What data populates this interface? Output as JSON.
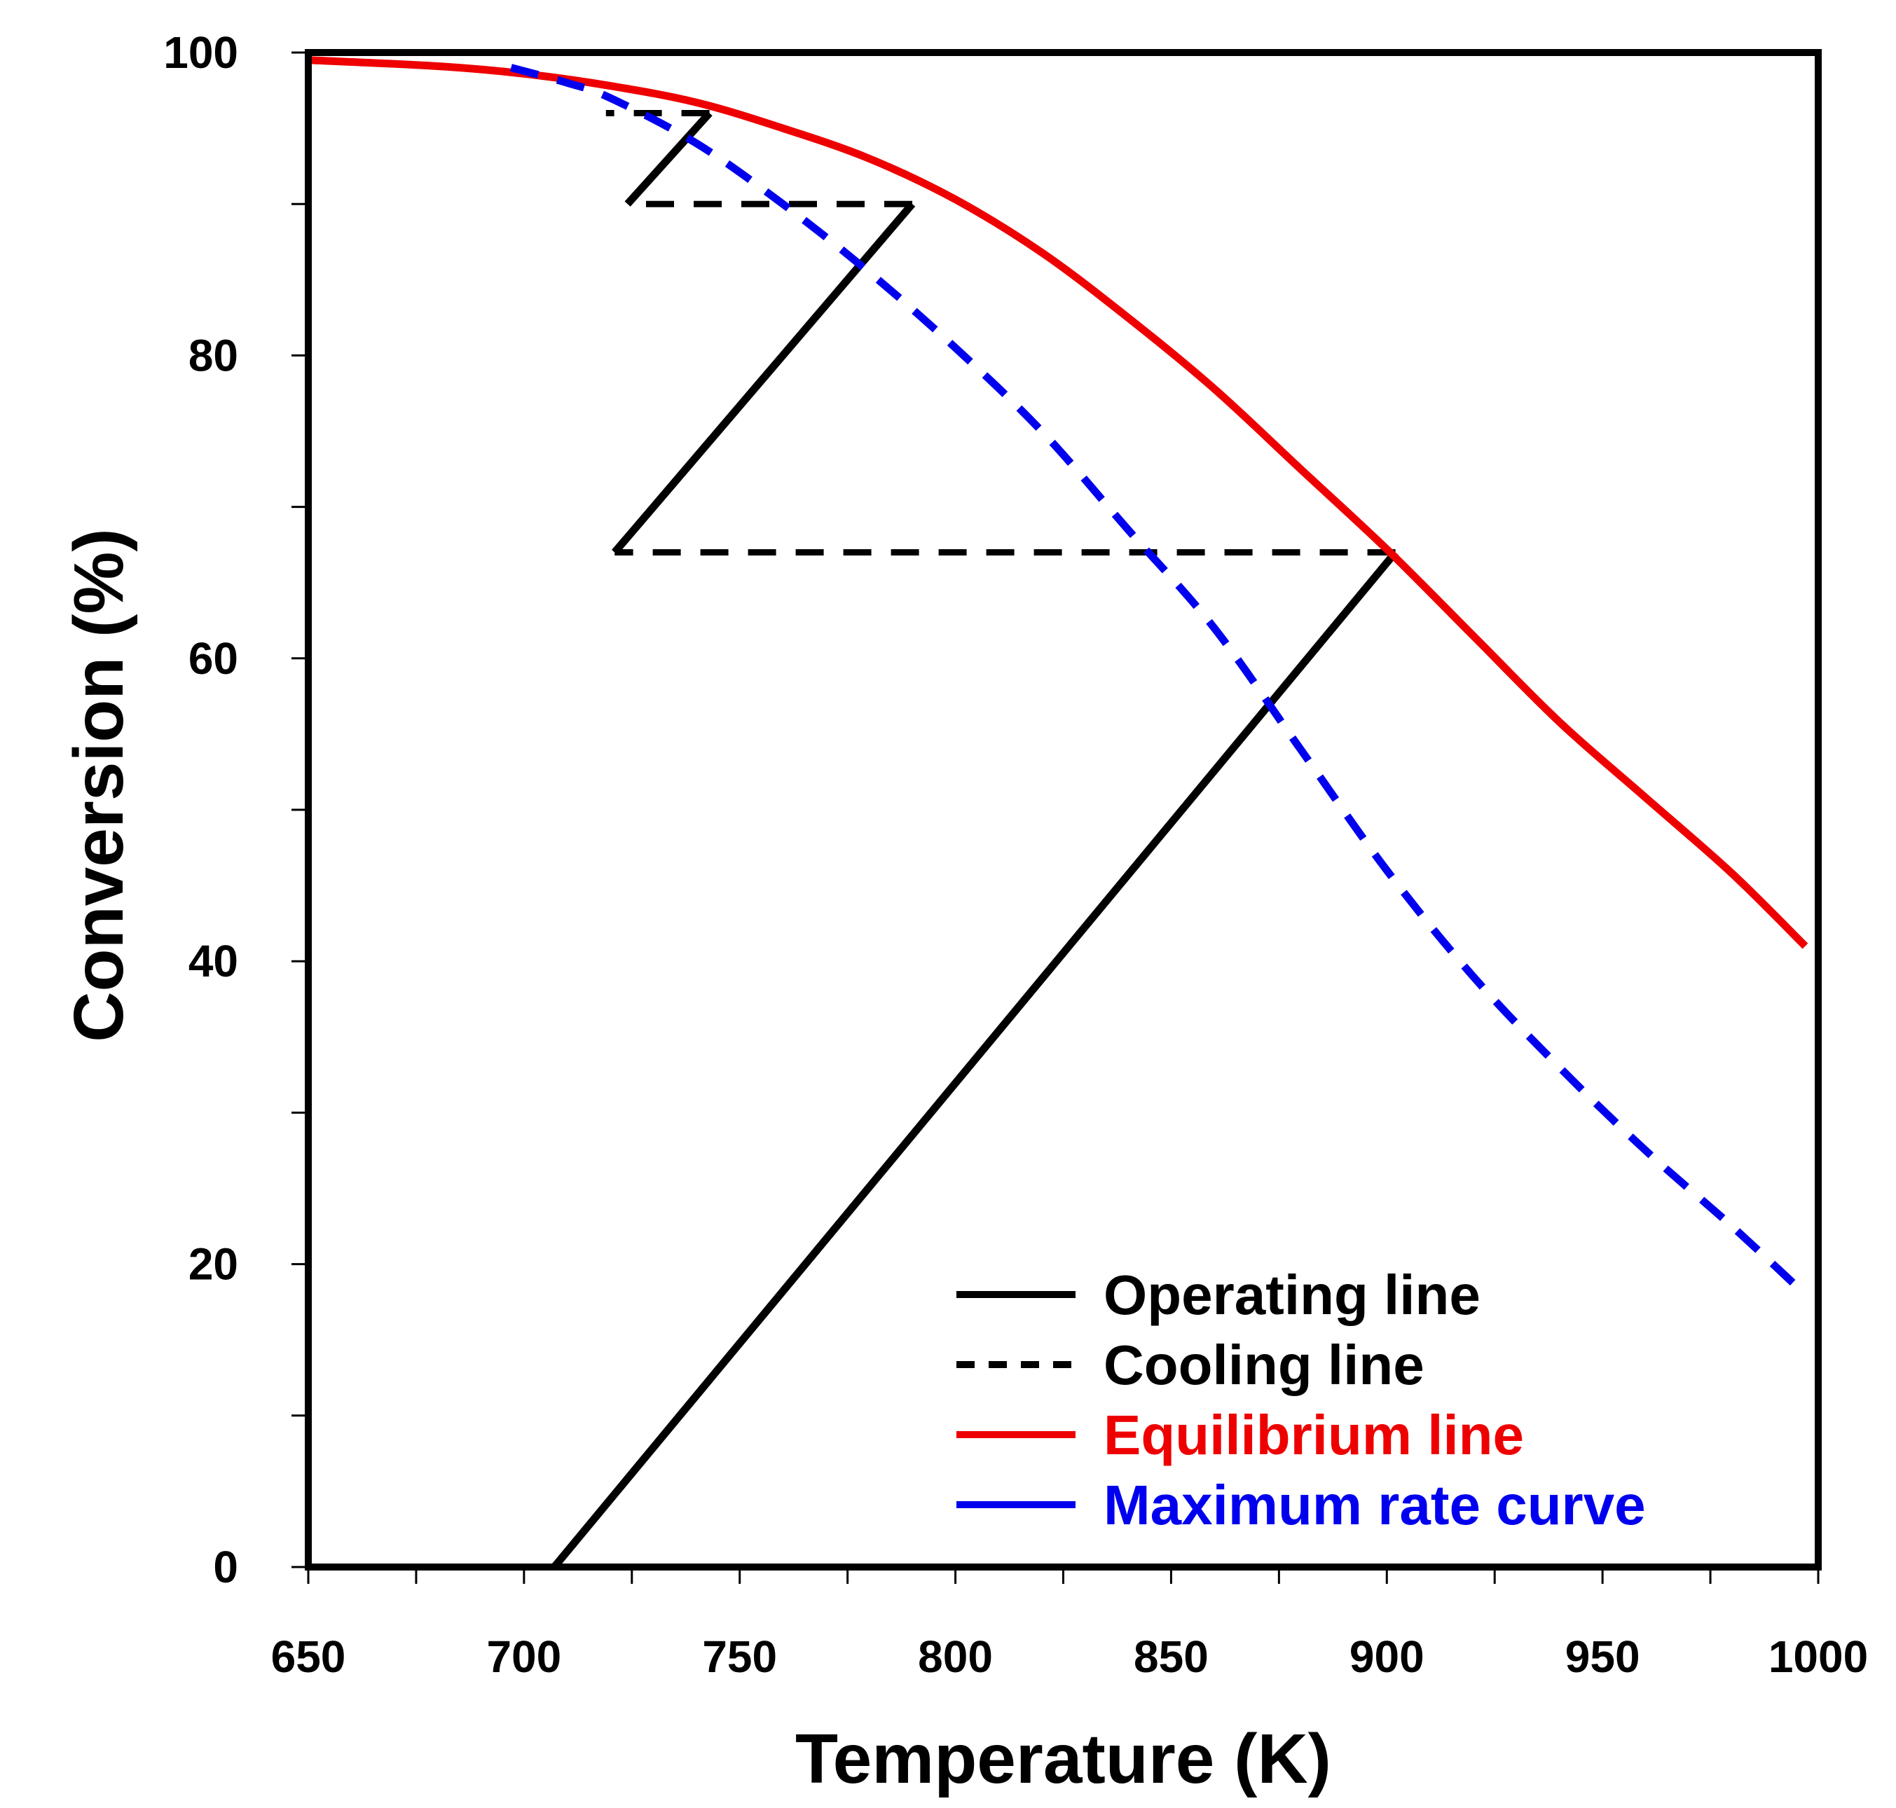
{
  "chart_data": {
    "type": "line",
    "title": "",
    "xlabel": "Temperature (K)",
    "ylabel": "Conversion (%)",
    "xlim": [
      650,
      1000
    ],
    "ylim": [
      0,
      100
    ],
    "xticks": [
      650,
      700,
      750,
      800,
      850,
      900,
      950,
      1000
    ],
    "xtick_labels": [
      "650",
      "700",
      "750",
      "800",
      "850",
      "900",
      "950",
      "1000"
    ],
    "yticks": [
      0,
      20,
      40,
      60,
      80,
      100
    ],
    "ytick_labels": [
      "0",
      "20",
      "40",
      "60",
      "80",
      "100"
    ],
    "x_minor_step": 25,
    "y_minor_step": 10,
    "grid": false,
    "legend_position": "bottom-right",
    "series": [
      {
        "name": "Operating line",
        "color": "#000000",
        "style": "solid",
        "segments": [
          [
            [
              707,
              0
            ],
            [
              902,
              67
            ]
          ],
          [
            [
              721,
              67
            ],
            [
              790,
              90
            ]
          ],
          [
            [
              724,
              90
            ],
            [
              743,
              96
            ]
          ]
        ]
      },
      {
        "name": "Cooling line",
        "color": "#000000",
        "style": "dashed",
        "segments": [
          [
            [
              902,
              67
            ],
            [
              721,
              67
            ]
          ],
          [
            [
              790,
              90
            ],
            [
              724,
              90
            ]
          ],
          [
            [
              743,
              96
            ],
            [
              719,
              96
            ]
          ]
        ]
      },
      {
        "name": "Equilibrium line",
        "color": "#ee0000",
        "style": "solid",
        "points": [
          [
            650,
            99.5
          ],
          [
            680,
            99.1
          ],
          [
            700,
            98.6
          ],
          [
            720,
            97.8
          ],
          [
            740,
            96.7
          ],
          [
            760,
            95.0
          ],
          [
            780,
            93.0
          ],
          [
            800,
            90.3
          ],
          [
            820,
            86.8
          ],
          [
            840,
            82.5
          ],
          [
            860,
            77.8
          ],
          [
            880,
            72.5
          ],
          [
            900,
            67.2
          ],
          [
            920,
            61.5
          ],
          [
            940,
            55.8
          ],
          [
            960,
            50.8
          ],
          [
            980,
            45.8
          ],
          [
            997,
            41.0
          ]
        ]
      },
      {
        "name": "Maximum rate curve",
        "color": "#0000ee",
        "style": "dashed",
        "points": [
          [
            697,
            99.0
          ],
          [
            710,
            98.0
          ],
          [
            720,
            97.0
          ],
          [
            740,
            94.0
          ],
          [
            760,
            90.0
          ],
          [
            780,
            85.5
          ],
          [
            800,
            80.5
          ],
          [
            820,
            75.0
          ],
          [
            840,
            68.5
          ],
          [
            860,
            62.0
          ],
          [
            880,
            54.0
          ],
          [
            900,
            46.0
          ],
          [
            920,
            39.0
          ],
          [
            940,
            33.0
          ],
          [
            960,
            27.5
          ],
          [
            980,
            22.5
          ],
          [
            997,
            18.0
          ]
        ]
      }
    ]
  }
}
